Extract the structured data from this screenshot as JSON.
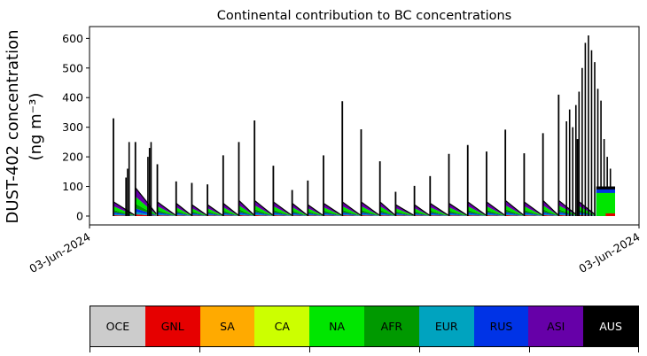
{
  "chart_data": {
    "type": "area",
    "title": "Continental contribution to BC concentrations",
    "ylabel_line1": "DUST-402 concentration",
    "ylabel_line2": "(ng m⁻³)",
    "xlabel": "",
    "ylim": [
      -30,
      640
    ],
    "yticks": [
      0,
      100,
      200,
      300,
      400,
      500,
      600
    ],
    "xtick_labels": [
      "03-Jun-2024",
      "03-Jun-2024"
    ],
    "grid": false,
    "series_order": [
      "OCE",
      "GNL",
      "SA",
      "CA",
      "NA",
      "AFR",
      "EUR",
      "RUS",
      "ASI",
      "AUS"
    ],
    "cycle_base": {
      "GNL": 3,
      "NA": 12,
      "AFR": 8,
      "EUR": 4,
      "RUS": 6,
      "ASI": 15
    },
    "cycles": [
      {
        "start": 0.0,
        "len": 0.07,
        "peak": 330,
        "amp": 1.0
      },
      {
        "start": 0.07,
        "len": 0.07,
        "peak": 250,
        "amp": 2.0
      },
      {
        "start": 0.14,
        "len": 0.06,
        "peak": 175,
        "amp": 1.0
      },
      {
        "start": 0.2,
        "len": 0.05,
        "peak": 117,
        "amp": 0.9
      },
      {
        "start": 0.25,
        "len": 0.05,
        "peak": 112,
        "amp": 0.8
      },
      {
        "start": 0.3,
        "len": 0.05,
        "peak": 107,
        "amp": 0.8
      },
      {
        "start": 0.35,
        "len": 0.05,
        "peak": 205,
        "amp": 0.9
      },
      {
        "start": 0.4,
        "len": 0.05,
        "peak": 250,
        "amp": 1.1
      },
      {
        "start": 0.45,
        "len": 0.06,
        "peak": 323,
        "amp": 1.1
      },
      {
        "start": 0.51,
        "len": 0.06,
        "peak": 170,
        "amp": 1.0
      },
      {
        "start": 0.57,
        "len": 0.05,
        "peak": 88,
        "amp": 0.9
      },
      {
        "start": 0.62,
        "len": 0.05,
        "peak": 120,
        "amp": 0.8
      },
      {
        "start": 0.67,
        "len": 0.06,
        "peak": 205,
        "amp": 0.9
      },
      {
        "start": 0.73,
        "len": 0.06,
        "peak": 388,
        "amp": 1.0
      },
      {
        "start": 0.79,
        "len": 0.06,
        "peak": 293,
        "amp": 1.0
      },
      {
        "start": 0.85,
        "len": 0.05,
        "peak": 185,
        "amp": 1.0
      },
      {
        "start": 0.9,
        "len": 0.06,
        "peak": 82,
        "amp": 0.8
      },
      {
        "start": 0.96,
        "len": 0.05,
        "peak": 102,
        "amp": 0.8
      },
      {
        "start": 1.01,
        "len": 0.06,
        "peak": 135,
        "amp": 0.9
      },
      {
        "start": 1.07,
        "len": 0.06,
        "peak": 210,
        "amp": 0.9
      },
      {
        "start": 1.13,
        "len": 0.06,
        "peak": 240,
        "amp": 1.0
      },
      {
        "start": 1.19,
        "len": 0.06,
        "peak": 218,
        "amp": 1.0
      },
      {
        "start": 1.25,
        "len": 0.06,
        "peak": 292,
        "amp": 1.1
      },
      {
        "start": 1.31,
        "len": 0.06,
        "peak": 212,
        "amp": 1.0
      },
      {
        "start": 1.37,
        "len": 0.05,
        "peak": 280,
        "amp": 1.1
      },
      {
        "start": 1.42,
        "len": 0.06,
        "peak": 410,
        "amp": 1.1
      },
      {
        "start": 1.48,
        "len": 0.06,
        "peak": 260,
        "amp": 1.1
      }
    ],
    "spikes_extra": [
      {
        "x": 1.445,
        "y": 320
      },
      {
        "x": 1.455,
        "y": 360
      },
      {
        "x": 1.465,
        "y": 300
      },
      {
        "x": 1.475,
        "y": 375
      },
      {
        "x": 1.485,
        "y": 420
      },
      {
        "x": 1.495,
        "y": 500
      },
      {
        "x": 1.505,
        "y": 585
      },
      {
        "x": 1.515,
        "y": 610
      },
      {
        "x": 1.525,
        "y": 560
      },
      {
        "x": 1.535,
        "y": 520
      },
      {
        "x": 1.545,
        "y": 430
      },
      {
        "x": 1.555,
        "y": 390
      },
      {
        "x": 1.565,
        "y": 260
      },
      {
        "x": 1.575,
        "y": 200
      },
      {
        "x": 1.585,
        "y": 160
      },
      {
        "x": 0.11,
        "y": 200
      },
      {
        "x": 0.115,
        "y": 230
      },
      {
        "x": 0.12,
        "y": 250
      },
      {
        "x": 0.04,
        "y": 130
      },
      {
        "x": 0.045,
        "y": 160
      },
      {
        "x": 0.05,
        "y": 250
      }
    ],
    "tail": {
      "start": 1.54,
      "end": 1.6,
      "base": 3,
      "green": 78,
      "blue": 90,
      "black": 100
    }
  },
  "legend": {
    "items": [
      {
        "label": "OCE",
        "color": "#cccccc",
        "text_color": "#000000"
      },
      {
        "label": "GNL",
        "color": "#e60000",
        "text_color": "#000000"
      },
      {
        "label": "SA",
        "color": "#ffaa00",
        "text_color": "#000000"
      },
      {
        "label": "CA",
        "color": "#ccff00",
        "text_color": "#000000"
      },
      {
        "label": "NA",
        "color": "#00e600",
        "text_color": "#000000"
      },
      {
        "label": "AFR",
        "color": "#009900",
        "text_color": "#000000"
      },
      {
        "label": "EUR",
        "color": "#00a3bf",
        "text_color": "#000000"
      },
      {
        "label": "RUS",
        "color": "#0033e6",
        "text_color": "#000000"
      },
      {
        "label": "ASI",
        "color": "#6600a8",
        "text_color": "#000000"
      },
      {
        "label": "AUS",
        "color": "#000000",
        "text_color": "#ffffff"
      }
    ]
  }
}
